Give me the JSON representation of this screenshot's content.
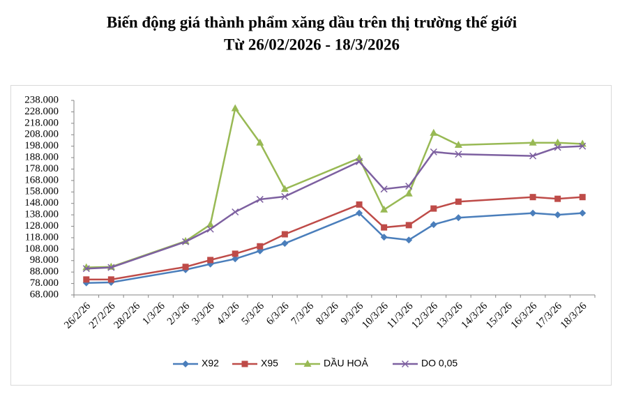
{
  "chart_data": {
    "type": "line",
    "title": "Biến động giá thành phẩm xăng dầu trên thị trường thế giới",
    "subtitle": "Từ 26/02/2026 - 18/3/2026",
    "categories": [
      "26/2/26",
      "27/2/26",
      "28/2/26",
      "1/3/26",
      "2/3/26",
      "3/3/26",
      "4/3/26",
      "5/3/26",
      "6/3/26",
      "7/3/26",
      "8/3/26",
      "9/3/26",
      "10/3/26",
      "11/3/26",
      "12/3/26",
      "13/3/26",
      "14/3/26",
      "15/3/26",
      "16/3/26",
      "17/3/26",
      "18/3/26"
    ],
    "x": [
      "26/2/26",
      "27/2/26",
      "2/3/26",
      "3/3/26",
      "4/3/26",
      "5/3/26",
      "6/3/26",
      "9/3/26",
      "10/3/26",
      "11/3/26",
      "12/3/26",
      "13/3/26",
      "16/3/26",
      "17/3/26",
      "18/3/26"
    ],
    "series": [
      {
        "name": "X92",
        "color": "#4a7ebb",
        "marker": "diamond",
        "values": [
          78500,
          79000,
          90000,
          95000,
          99500,
          106500,
          113000,
          139500,
          118500,
          116000,
          129500,
          135500,
          139500,
          138000,
          139500
        ]
      },
      {
        "name": "X95",
        "color": "#be4b48",
        "marker": "square",
        "values": [
          81500,
          81500,
          92500,
          98500,
          104000,
          110500,
          121000,
          147000,
          127000,
          129000,
          143500,
          149500,
          153500,
          152000,
          153500
        ]
      },
      {
        "name": "DẦU HOẢ",
        "color": "#98b954",
        "marker": "triangle",
        "values": [
          92000,
          92500,
          115000,
          129500,
          231000,
          201000,
          160500,
          187500,
          142500,
          156500,
          209500,
          199000,
          201000,
          201000,
          200000
        ]
      },
      {
        "name": "DO 0,05",
        "color": "#7d60a0",
        "marker": "x",
        "values": [
          91000,
          92000,
          114500,
          125500,
          140500,
          151500,
          154000,
          184500,
          160500,
          163000,
          193000,
          191000,
          189500,
          197000,
          198000
        ]
      }
    ],
    "ylim": [
      68000,
      238000
    ],
    "yticks": [
      {
        "value": 68000,
        "label": "68.000"
      },
      {
        "value": 78000,
        "label": "78.000"
      },
      {
        "value": 88000,
        "label": "88.000"
      },
      {
        "value": 98000,
        "label": "98.000"
      },
      {
        "value": 108000,
        "label": "108.000"
      },
      {
        "value": 118000,
        "label": "118.000"
      },
      {
        "value": 128000,
        "label": "128.000"
      },
      {
        "value": 138000,
        "label": "138.000"
      },
      {
        "value": 148000,
        "label": "148.000"
      },
      {
        "value": 158000,
        "label": "158.000"
      },
      {
        "value": 168000,
        "label": "168.000"
      },
      {
        "value": 178000,
        "label": "178.000"
      },
      {
        "value": 188000,
        "label": "188.000"
      },
      {
        "value": 198000,
        "label": "198.000"
      },
      {
        "value": 208000,
        "label": "208.000"
      },
      {
        "value": 218000,
        "label": "218.000"
      },
      {
        "value": 228000,
        "label": "228.000"
      },
      {
        "value": 238000,
        "label": "238.000"
      }
    ],
    "grid": false,
    "legend": "bottom"
  }
}
